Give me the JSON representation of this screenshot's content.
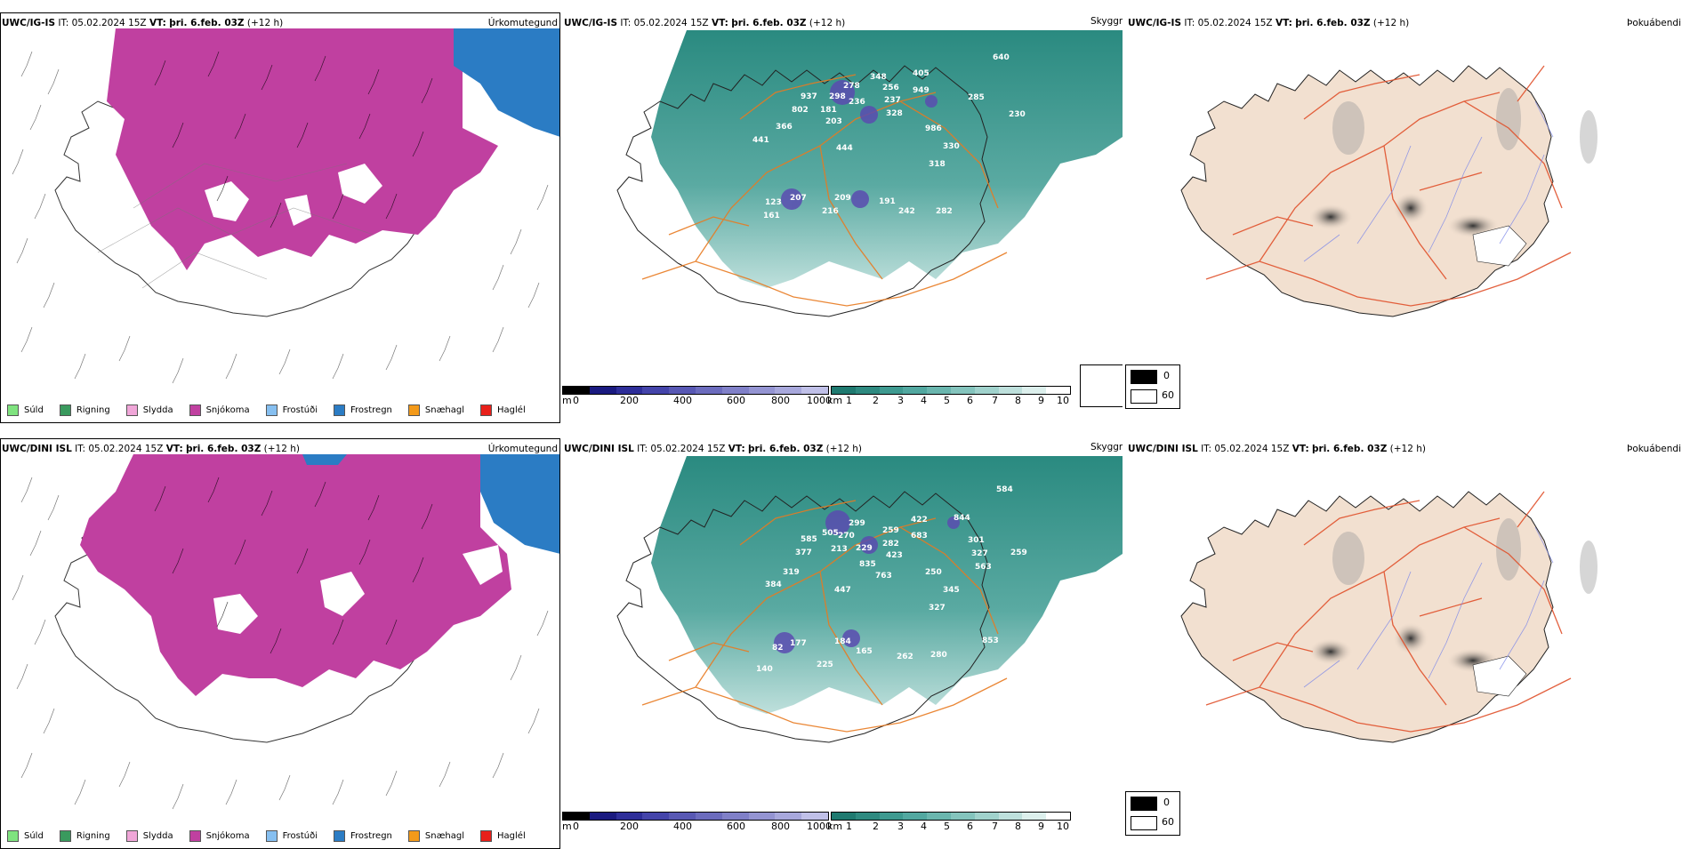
{
  "rows": [
    {
      "model": "UWC/IG-IS",
      "it_label": "IT:",
      "it_value": "05.02.2024 15Z",
      "vt_label": "VT:",
      "vt_value": "þri. 6.feb. 03Z",
      "lead": "(+12 h)",
      "snow_labels": [
        "937",
        "802",
        "181",
        "203",
        "298",
        "278",
        "348",
        "236",
        "256",
        "237",
        "405",
        "949",
        "328",
        "366",
        "441",
        "444",
        "986",
        "330",
        "318",
        "285",
        "230",
        "640",
        "123",
        "207",
        "161",
        "216",
        "209",
        "191",
        "242",
        "282"
      ]
    },
    {
      "model": "UWC/DINI ISL",
      "it_label": "IT:",
      "it_value": "05.02.2024 15Z",
      "vt_label": "VT:",
      "vt_value": "þri. 6.feb. 03Z",
      "lead": "(+12 h)",
      "snow_labels": [
        "585",
        "377",
        "505",
        "270",
        "213",
        "229",
        "299",
        "259",
        "282",
        "422",
        "683",
        "423",
        "835",
        "763",
        "319",
        "384",
        "447",
        "250",
        "345",
        "327",
        "844",
        "301",
        "327",
        "563",
        "259",
        "584",
        "82",
        "177",
        "140",
        "184",
        "225",
        "165",
        "262",
        "280",
        "853"
      ]
    }
  ],
  "panel_titles": {
    "precip": "Úrkomutegund",
    "cloud": "Skyggni",
    "fog": "Þokuábendi"
  },
  "precip_legend": [
    {
      "label": "Súld",
      "color": "#7fe37f"
    },
    {
      "label": "Rigning",
      "color": "#3a9a5e"
    },
    {
      "label": "Slydda",
      "color": "#f0a6d8"
    },
    {
      "label": "Snjókoma",
      "color": "#c040a0"
    },
    {
      "label": "Frostúði",
      "color": "#86bff0"
    },
    {
      "label": "Frostregn",
      "color": "#2b7cc4"
    },
    {
      "label": "Snæhagl",
      "color": "#f39a1a"
    },
    {
      "label": "Haglél",
      "color": "#e8201a"
    }
  ],
  "height_scale": {
    "unit": "m",
    "ticks": [
      "0",
      "200",
      "400",
      "600",
      "800",
      "1000"
    ]
  },
  "visibility_scale": {
    "unit": "km",
    "ticks": [
      "1",
      "2",
      "3",
      "4",
      "5",
      "6",
      "7",
      "8",
      "9",
      "10"
    ]
  },
  "cloud_legend": {
    "black_label": "0",
    "white_label": "60"
  },
  "colors": {
    "snow": "#c040a0",
    "frz_rain": "#2b7cc4",
    "teal": "#2a8a80",
    "land": "#f2e0d0",
    "roads": "#e06a2a"
  }
}
